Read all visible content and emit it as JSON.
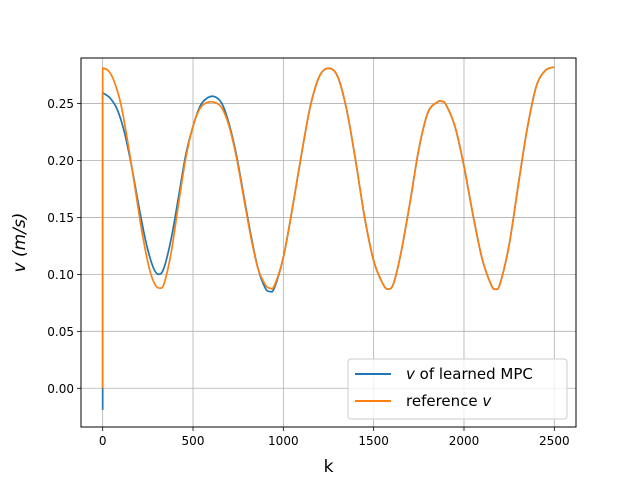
{
  "chart_data": {
    "type": "line",
    "title": "",
    "xlabel": "k",
    "ylabel": "v (m/s)",
    "xlim": [
      -120,
      2620
    ],
    "ylim": [
      -0.034,
      0.29
    ],
    "grid": true,
    "legend_position": "bottom-right",
    "xticks": [
      0,
      500,
      1000,
      1500,
      2000,
      2500
    ],
    "xtick_labels": [
      "0",
      "500",
      "1000",
      "1500",
      "2000",
      "2500"
    ],
    "yticks": [
      0.0,
      0.05,
      0.1,
      0.15,
      0.2,
      0.25
    ],
    "ytick_labels": [
      "0.00",
      "0.05",
      "0.10",
      "0.15",
      "0.20",
      "0.25"
    ],
    "series": [
      {
        "name": "v of learned MPC",
        "color": "#1f77b4",
        "x": [
          0,
          0,
          5,
          40,
          80,
          120,
          160,
          200,
          240,
          280,
          310,
          340,
          380,
          420,
          460,
          500,
          540,
          580,
          620,
          660,
          700,
          740,
          780,
          820,
          860,
          900,
          925,
          950,
          1000,
          1050,
          1100,
          1150,
          1200,
          1250,
          1300,
          1350,
          1400,
          1450,
          1500,
          1550,
          1580,
          1610,
          1650,
          1700,
          1750,
          1800,
          1850,
          1875,
          1900,
          1950,
          2000,
          2050,
          2100,
          2150,
          2175,
          2200,
          2250,
          2300,
          2350,
          2400,
          2450,
          2500
        ],
        "y": [
          -0.019,
          0.26,
          0.259,
          0.255,
          0.245,
          0.225,
          0.195,
          0.16,
          0.128,
          0.106,
          0.1,
          0.106,
          0.132,
          0.168,
          0.205,
          0.23,
          0.248,
          0.255,
          0.256,
          0.25,
          0.232,
          0.205,
          0.17,
          0.135,
          0.105,
          0.088,
          0.085,
          0.088,
          0.115,
          0.158,
          0.205,
          0.248,
          0.274,
          0.281,
          0.274,
          0.245,
          0.2,
          0.15,
          0.112,
          0.092,
          0.087,
          0.092,
          0.118,
          0.162,
          0.21,
          0.242,
          0.251,
          0.252,
          0.249,
          0.23,
          0.195,
          0.152,
          0.114,
          0.091,
          0.087,
          0.092,
          0.126,
          0.178,
          0.228,
          0.265,
          0.279,
          0.282
        ]
      },
      {
        "name": "reference v",
        "color": "#ff7f0e",
        "x": [
          0,
          0,
          5,
          30,
          60,
          100,
          140,
          180,
          220,
          260,
          290,
          315,
          340,
          380,
          420,
          460,
          500,
          540,
          580,
          620,
          660,
          700,
          740,
          780,
          820,
          860,
          900,
          925,
          950,
          1000,
          1050,
          1100,
          1150,
          1200,
          1250,
          1300,
          1350,
          1400,
          1450,
          1500,
          1550,
          1580,
          1610,
          1650,
          1700,
          1750,
          1800,
          1850,
          1875,
          1900,
          1950,
          2000,
          2050,
          2100,
          2150,
          2175,
          2200,
          2250,
          2300,
          2350,
          2400,
          2450,
          2500
        ],
        "y": [
          0.0,
          0.281,
          0.281,
          0.279,
          0.271,
          0.25,
          0.215,
          0.175,
          0.135,
          0.104,
          0.091,
          0.088,
          0.092,
          0.12,
          0.162,
          0.202,
          0.23,
          0.246,
          0.251,
          0.251,
          0.246,
          0.23,
          0.203,
          0.168,
          0.133,
          0.105,
          0.091,
          0.088,
          0.09,
          0.115,
          0.158,
          0.205,
          0.248,
          0.274,
          0.281,
          0.274,
          0.245,
          0.2,
          0.15,
          0.112,
          0.092,
          0.087,
          0.092,
          0.118,
          0.162,
          0.21,
          0.242,
          0.251,
          0.252,
          0.249,
          0.23,
          0.195,
          0.152,
          0.114,
          0.091,
          0.087,
          0.092,
          0.126,
          0.178,
          0.228,
          0.265,
          0.279,
          0.282
        ]
      }
    ],
    "legend": {
      "items": [
        {
          "italic": "v",
          "text": " of learned MPC",
          "color": "#1f77b4"
        },
        {
          "text": "reference ",
          "italic": "v",
          "color": "#ff7f0e"
        }
      ]
    }
  }
}
